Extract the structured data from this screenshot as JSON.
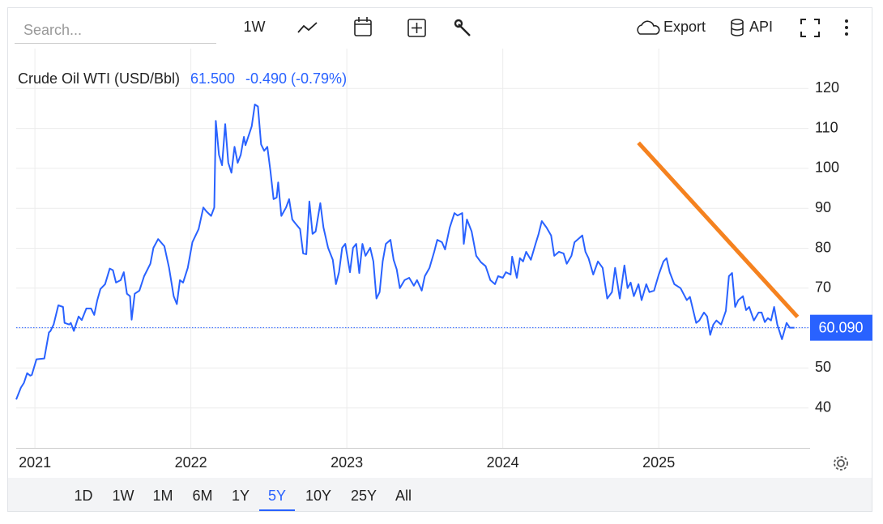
{
  "toolbar": {
    "search_placeholder": "Search...",
    "interval": "1W",
    "export": "Export",
    "api": "API"
  },
  "quote": {
    "price": "61.500",
    "change": "-0.490 (-0.79%)"
  },
  "ranges": {
    "items": [
      "1D",
      "1W",
      "1M",
      "6M",
      "1Y",
      "5Y",
      "10Y",
      "25Y",
      "All"
    ],
    "active": "5Y"
  },
  "chart_data": {
    "type": "line",
    "x": [
      2020.88,
      2020.91,
      2020.93,
      2020.95,
      2020.97,
      2020.98,
      2021.01,
      2021.06,
      2021.09,
      2021.1,
      2021.12,
      2021.15,
      2021.18,
      2021.19,
      2021.22,
      2021.23,
      2021.25,
      2021.28,
      2021.3,
      2021.33,
      2021.36,
      2021.38,
      2021.4,
      2021.42,
      2021.45,
      2021.48,
      2021.5,
      2021.52,
      2021.55,
      2021.57,
      2021.59,
      2021.61,
      2021.62,
      2021.64,
      2021.67,
      2021.7,
      2021.74,
      2021.76,
      2021.79,
      2021.83,
      2021.86,
      2021.89,
      2021.91,
      2021.93,
      2021.95,
      2021.98,
      2022.01,
      2022.05,
      2022.08,
      2022.1,
      2022.13,
      2022.15,
      2022.16,
      2022.18,
      2022.2,
      2022.22,
      2022.24,
      2022.26,
      2022.28,
      2022.3,
      2022.32,
      2022.34,
      2022.35,
      2022.39,
      2022.41,
      2022.43,
      2022.45,
      2022.47,
      2022.49,
      2022.51,
      2022.53,
      2022.55,
      2022.56,
      2022.58,
      2022.61,
      2022.63,
      2022.65,
      2022.67,
      2022.7,
      2022.72,
      2022.74,
      2022.76,
      2022.78,
      2022.8,
      2022.83,
      2022.85,
      2022.88,
      2022.91,
      2022.93,
      2022.95,
      2022.97,
      2022.99,
      2023.02,
      2023.04,
      2023.06,
      2023.08,
      2023.1,
      2023.12,
      2023.15,
      2023.17,
      2023.19,
      2023.21,
      2023.23,
      2023.25,
      2023.28,
      2023.3,
      2023.32,
      2023.34,
      2023.37,
      2023.4,
      2023.43,
      2023.45,
      2023.48,
      2023.5,
      2023.53,
      2023.56,
      2023.58,
      2023.61,
      2023.63,
      2023.66,
      2023.69,
      2023.71,
      2023.74,
      2023.75,
      2023.77,
      2023.8,
      2023.83,
      2023.86,
      2023.89,
      2023.92,
      2023.95,
      2023.97,
      2024.0,
      2024.02,
      2024.05,
      2024.06,
      2024.09,
      2024.11,
      2024.13,
      2024.15,
      2024.18,
      2024.21,
      2024.23,
      2024.25,
      2024.28,
      2024.31,
      2024.33,
      2024.36,
      2024.39,
      2024.41,
      2024.44,
      2024.46,
      2024.51,
      2024.53,
      2024.55,
      2024.58,
      2024.61,
      2024.64,
      2024.67,
      2024.7,
      2024.72,
      2024.75,
      2024.78,
      2024.8,
      2024.82,
      2024.84,
      2024.87,
      2024.89,
      2024.92,
      2024.94,
      2024.97,
      2025.0,
      2025.03,
      2025.05,
      2025.07,
      2025.1,
      2025.14,
      2025.18,
      2025.2,
      2025.24,
      2025.26,
      2025.29,
      2025.31,
      2025.33,
      2025.35,
      2025.37,
      2025.4,
      2025.43,
      2025.45,
      2025.47,
      2025.49,
      2025.51,
      2025.54,
      2025.56,
      2025.58,
      2025.61,
      2025.64,
      2025.66,
      2025.68,
      2025.7,
      2025.72,
      2025.74,
      2025.76,
      2025.79,
      2025.82,
      2025.84,
      2025.87
    ],
    "series": [
      {
        "name": "Crude Oil WTI (USD/Bbl)",
        "color": "#2962ff",
        "values": [
          42.1,
          45.1,
          46.3,
          48.7,
          48.1,
          48.3,
          52.2,
          52.4,
          58.9,
          59.3,
          60.9,
          65.7,
          65.3,
          61.3,
          60.9,
          61.3,
          59.3,
          62.9,
          62.0,
          64.9,
          64.9,
          63.3,
          67.0,
          69.8,
          71.0,
          74.9,
          74.5,
          71.4,
          72.0,
          74.0,
          68.6,
          68.0,
          62.1,
          68.6,
          69.4,
          73.0,
          76.1,
          80.1,
          82.3,
          80.5,
          75.1,
          68.0,
          66.0,
          72.0,
          71.4,
          75.1,
          81.5,
          84.8,
          90.2,
          89.2,
          88.1,
          90.2,
          111.9,
          103.4,
          100.8,
          111.1,
          101.4,
          98.9,
          105.4,
          101.4,
          103.4,
          107.9,
          105.8,
          110.5,
          116.0,
          115.5,
          106.0,
          104.4,
          105.4,
          99.4,
          92.3,
          92.7,
          96.5,
          88.1,
          90.2,
          92.3,
          87.2,
          86.2,
          84.8,
          78.7,
          78.5,
          91.7,
          83.6,
          84.2,
          91.3,
          85.2,
          80.1,
          77.1,
          71.0,
          74.0,
          80.1,
          81.1,
          74.0,
          80.1,
          81.1,
          73.8,
          81.1,
          78.1,
          80.1,
          76.7,
          67.4,
          69.0,
          76.7,
          81.1,
          82.1,
          77.1,
          74.7,
          70.0,
          72.0,
          72.6,
          70.6,
          72.0,
          69.4,
          73.0,
          75.1,
          79.1,
          82.1,
          81.5,
          79.7,
          85.2,
          88.8,
          88.2,
          88.8,
          81.1,
          87.2,
          84.2,
          78.1,
          76.5,
          75.5,
          72.0,
          71.0,
          73.0,
          72.6,
          74.0,
          73.4,
          77.9,
          72.6,
          77.5,
          76.7,
          79.1,
          77.1,
          81.1,
          83.6,
          86.8,
          85.2,
          83.2,
          78.1,
          79.1,
          78.7,
          76.1,
          78.1,
          81.5,
          83.2,
          79.1,
          77.5,
          73.4,
          76.7,
          75.1,
          67.4,
          69.0,
          75.1,
          67.4,
          75.7,
          70.0,
          71.4,
          68.0,
          71.0,
          67.0,
          71.0,
          69.0,
          69.4,
          73.4,
          76.7,
          77.5,
          74.0,
          71.0,
          70.0,
          67.0,
          67.8,
          61.3,
          61.9,
          63.9,
          62.9,
          58.3,
          60.9,
          61.9,
          60.9,
          64.3,
          73.0,
          73.8,
          65.3,
          67.0,
          68.0,
          64.5,
          65.3,
          61.9,
          63.9,
          63.9,
          61.5,
          62.5,
          61.9,
          65.3,
          60.9,
          57.2,
          61.3,
          60.1,
          60.1
        ]
      }
    ],
    "last_value": 60.09,
    "last_value_label": "60.090",
    "trendline": {
      "x": [
        2024.87,
        2025.89
      ],
      "values": [
        106.4,
        62.8
      ],
      "color": "#f5821f"
    },
    "xlim": [
      2020.88,
      2025.96
    ],
    "xticks": [
      2021,
      2022,
      2023,
      2024,
      2025
    ],
    "ylim": [
      30,
      130
    ],
    "yticks": [
      40,
      50,
      60,
      70,
      80,
      90,
      100,
      110,
      120
    ],
    "grid": true
  }
}
